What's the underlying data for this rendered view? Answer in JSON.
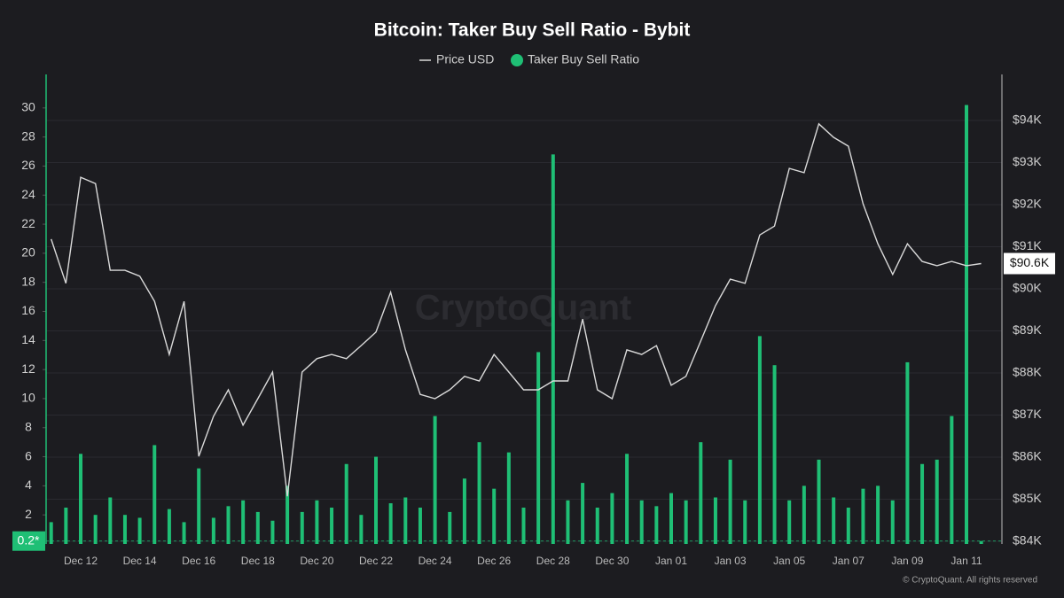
{
  "chart_data": {
    "type": "combo",
    "title": "Bitcoin: Taker Buy Sell Ratio - Bybit",
    "legend_position": "top",
    "grid": true,
    "watermark": "CryptoQuant",
    "credit": "© CryptoQuant. All rights reserved",
    "categories": [
      null,
      null,
      "Dec 12",
      null,
      null,
      null,
      "Dec 14",
      null,
      null,
      null,
      "Dec 16",
      null,
      null,
      null,
      "Dec 18",
      null,
      null,
      null,
      "Dec 20",
      null,
      null,
      null,
      "Dec 22",
      null,
      null,
      null,
      "Dec 24",
      null,
      null,
      null,
      "Dec 26",
      null,
      null,
      null,
      "Dec 28",
      null,
      null,
      null,
      "Dec 30",
      null,
      null,
      null,
      "Jan 01",
      null,
      null,
      null,
      "Jan 03",
      null,
      null,
      null,
      "Jan 05",
      null,
      null,
      null,
      "Jan 07",
      null,
      null,
      null,
      "Jan 09",
      null,
      null,
      null,
      "Jan 11",
      null
    ],
    "ylim": [
      0,
      32
    ],
    "yticks": [
      2,
      4,
      6,
      8,
      10,
      12,
      14,
      16,
      18,
      20,
      22,
      24,
      26,
      28,
      30
    ],
    "y2lim": [
      83937,
      94989
    ],
    "y2ticks": [
      {
        "value": 84000,
        "label": "$84K"
      },
      {
        "value": 85000,
        "label": "$85K"
      },
      {
        "value": 86000,
        "label": "$86K"
      },
      {
        "value": 87000,
        "label": "$87K"
      },
      {
        "value": 88000,
        "label": "$88K"
      },
      {
        "value": 89000,
        "label": "$89K"
      },
      {
        "value": 90000,
        "label": "$90K"
      },
      {
        "value": 91000,
        "label": "$91K"
      },
      {
        "value": 92000,
        "label": "$92K"
      },
      {
        "value": 93000,
        "label": "$93K"
      },
      {
        "value": 94000,
        "label": "$94K"
      }
    ],
    "current_markers": [
      {
        "value": 0.2,
        "label": "0.2*",
        "axis": "y",
        "color": "#1fbf75"
      },
      {
        "value": 90600,
        "label": "$90.6K",
        "axis": "y2",
        "color": "#ffffff"
      }
    ],
    "series": [
      {
        "name": "Price USD",
        "type": "line",
        "axis": "y2",
        "color": "#d9d9d9",
        "values": [
          91180,
          90130,
          92650,
          92500,
          90440,
          90440,
          90300,
          89700,
          88440,
          89700,
          86020,
          86970,
          87600,
          86760,
          87390,
          88020,
          85070,
          88020,
          88340,
          88440,
          88340,
          88650,
          88970,
          89920,
          88550,
          87490,
          87390,
          87600,
          87920,
          87810,
          88440,
          88020,
          87600,
          87600,
          87810,
          87810,
          89280,
          87600,
          87390,
          88550,
          88440,
          88650,
          87710,
          87920,
          88760,
          89600,
          90230,
          90130,
          91280,
          91490,
          92860,
          92760,
          93920,
          93600,
          93390,
          92020,
          91070,
          90340,
          91070,
          90650,
          90550,
          90650,
          90550,
          90600
        ]
      },
      {
        "name": "Taker Buy Sell Ratio",
        "type": "bar",
        "color": "#1fbf75",
        "values": [
          1.5,
          2.5,
          6.2,
          2.0,
          3.2,
          2.0,
          1.8,
          6.8,
          2.4,
          1.5,
          5.2,
          1.8,
          2.6,
          3.0,
          2.2,
          1.6,
          4.0,
          2.2,
          3.0,
          2.5,
          5.5,
          2.0,
          6.0,
          2.8,
          3.2,
          2.5,
          8.8,
          2.2,
          4.5,
          7.0,
          3.8,
          6.3,
          2.5,
          13.2,
          26.8,
          3.0,
          4.2,
          2.5,
          3.5,
          6.2,
          3.0,
          2.6,
          3.5,
          3.0,
          7.0,
          3.2,
          5.8,
          3.0,
          14.3,
          12.3,
          3.0,
          4.0,
          5.8,
          3.2,
          2.5,
          3.8,
          4.0,
          3.0,
          12.5,
          5.5,
          5.8,
          8.8,
          30.2,
          0.2
        ]
      }
    ]
  }
}
